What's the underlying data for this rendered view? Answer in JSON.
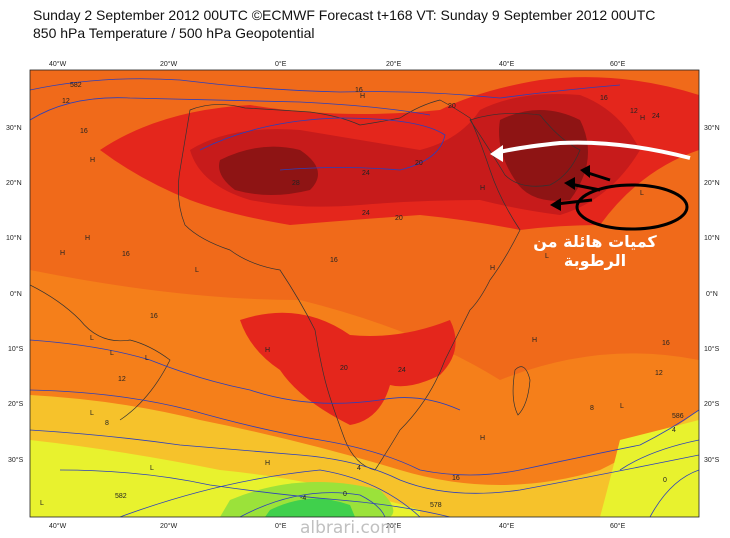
{
  "header": {
    "line1": "Sunday 2 September 2012 00UTC ©ECMWF Forecast t+168 VT: Sunday 9 September 2012 00UTC",
    "line2": "850 hPa Temperature / 500 hPa Geopotential"
  },
  "axes": {
    "lon_top": [
      "40°W",
      "20°W",
      "0°E",
      "20°E",
      "40°E",
      "60°E"
    ],
    "lon_bottom": [
      "40°W",
      "20°W",
      "0°E",
      "20°E",
      "40°E",
      "60°E"
    ],
    "lat_left": [
      "30°N",
      "20°N",
      "10°N",
      "0°N",
      "10°S",
      "20°S",
      "30°S"
    ],
    "lat_right": [
      "30°N",
      "20°N",
      "10°N",
      "0°N",
      "10°S",
      "20°S",
      "30°S"
    ]
  },
  "contour_labels": [
    "582",
    "12",
    "16",
    "20",
    "16",
    "28",
    "24",
    "20",
    "24",
    "16",
    "16",
    "16",
    "12",
    "8",
    "24",
    "20",
    "16",
    "12",
    "586",
    "4",
    "0",
    "8",
    "582",
    "578",
    "12",
    "24",
    "16",
    "16",
    "20",
    "-4",
    "0",
    "4"
  ],
  "pressure_marks": [
    "H",
    "H",
    "H",
    "L",
    "L",
    "L",
    "L",
    "H",
    "L",
    "L",
    "H",
    "H",
    "H",
    "L",
    "H",
    "L",
    "L",
    "H",
    "H",
    "L",
    "H"
  ],
  "annotation": {
    "arabic_text": "كميات هائلة من الرطوبة"
  },
  "watermark": "albrari.com",
  "colors": {
    "ocean_base": "#f57f1a",
    "warm": "#ee5a1c",
    "hot": "#e4261c",
    "very_hot": "#c71b1b",
    "extreme": "#8e1414",
    "cool": "#f6c22b",
    "cold": "#e8f22e",
    "colder": "#9be23a",
    "coldest": "#40d04c"
  }
}
